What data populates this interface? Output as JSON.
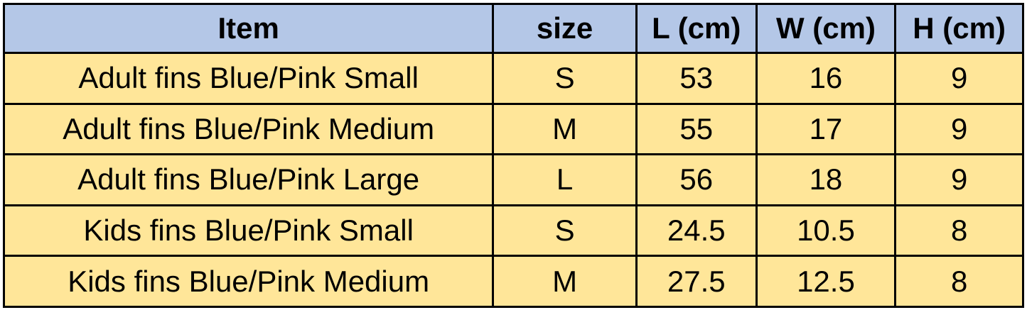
{
  "colors": {
    "header_bg": "#b4c7e7",
    "body_bg": "#ffe699",
    "border": "#000000"
  },
  "table": {
    "headers": [
      "Item",
      "size",
      "L (cm)",
      "W (cm)",
      "H (cm)"
    ],
    "rows": [
      [
        "Adult fins Blue/Pink Small",
        "S",
        "53",
        "16",
        "9"
      ],
      [
        "Adult fins Blue/Pink Medium",
        "M",
        "55",
        "17",
        "9"
      ],
      [
        "Adult fins Blue/Pink Large",
        "L",
        "56",
        "18",
        "9"
      ],
      [
        "Kids fins Blue/Pink Small",
        "S",
        "24.5",
        "10.5",
        "8"
      ],
      [
        "Kids fins Blue/Pink Medium",
        "M",
        "27.5",
        "12.5",
        "8"
      ]
    ]
  }
}
